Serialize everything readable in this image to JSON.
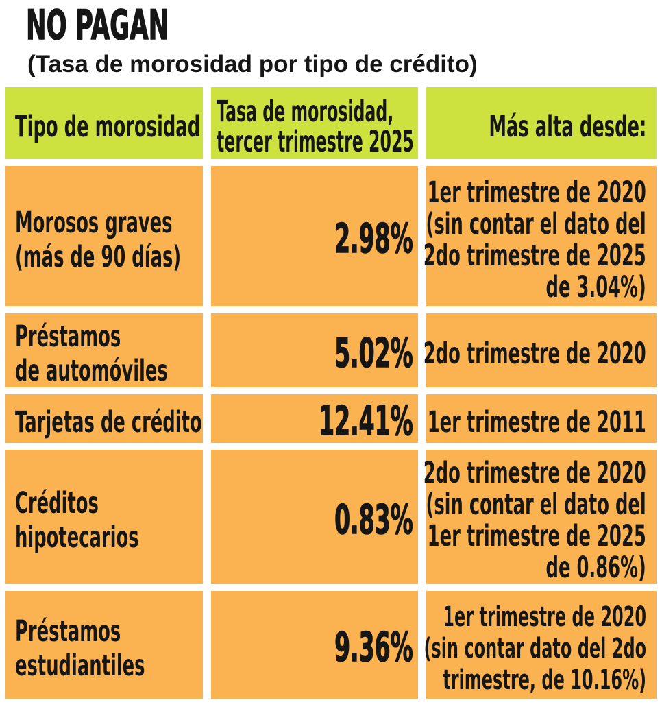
{
  "title": "NO PAGAN",
  "subtitle": "(Tasa de morosidad por tipo de crédito)",
  "colors": {
    "header_bg": "#cde13f",
    "cell_bg": "#fbb351",
    "text": "#161616",
    "page_bg": "#ffffff"
  },
  "table": {
    "headers": {
      "col1": "Tipo de morosidad",
      "col2": "Tasa de morosidad,\ntercer trimestre 2025",
      "col3": "Más alta desde:"
    },
    "rows": [
      {
        "tipo": "Morosos graves\n(más de 90 días)",
        "tasa": "2.98%",
        "desde": "1er trimestre de 2020\n(sin contar el dato del\n2do trimestre de 2025\nde 3.04%)"
      },
      {
        "tipo": "Préstamos\nde automóviles",
        "tasa": "5.02%",
        "desde": "2do trimestre de 2020"
      },
      {
        "tipo": "Tarjetas de crédito",
        "tasa": "12.41%",
        "desde": "1er trimestre de 2011"
      },
      {
        "tipo": "Créditos\nhipotecarios",
        "tasa": "0.83%",
        "desde": "2do trimestre de 2020\n(sin contar el dato del\n1er trimestre de 2025\nde 0.86%)"
      },
      {
        "tipo": "Préstamos\nestudiantiles",
        "tasa": "9.36%",
        "desde": "1er trimestre de 2020\n(sin contar dato del 2do\ntrimestre, de 10.16%)"
      }
    ]
  },
  "chart_data": {
    "type": "table",
    "title": "NO PAGAN",
    "subtitle": "(Tasa de morosidad por tipo de crédito)",
    "columns": [
      "Tipo de morosidad",
      "Tasa de morosidad, tercer trimestre 2025",
      "Más alta desde:"
    ],
    "rows": [
      [
        "Morosos graves (más de 90 días)",
        "2.98%",
        "1er trimestre de 2020 (sin contar el dato del 2do trimestre de 2025 de 3.04%)"
      ],
      [
        "Préstamos de automóviles",
        "5.02%",
        "2do trimestre de 2020"
      ],
      [
        "Tarjetas de crédito",
        "12.41%",
        "1er trimestre de 2011"
      ],
      [
        "Créditos hipotecarios",
        "0.83%",
        "2do trimestre de 2020 (sin contar el dato del 1er trimestre de 2025 de 0.86%)"
      ],
      [
        "Préstamos estudiantiles",
        "9.36%",
        "1er trimestre de 2020 (sin contar dato del 2do trimestre, de 10.16%)"
      ]
    ],
    "values": [
      2.98,
      5.02,
      12.41,
      0.83,
      9.36
    ],
    "unit": "%"
  }
}
